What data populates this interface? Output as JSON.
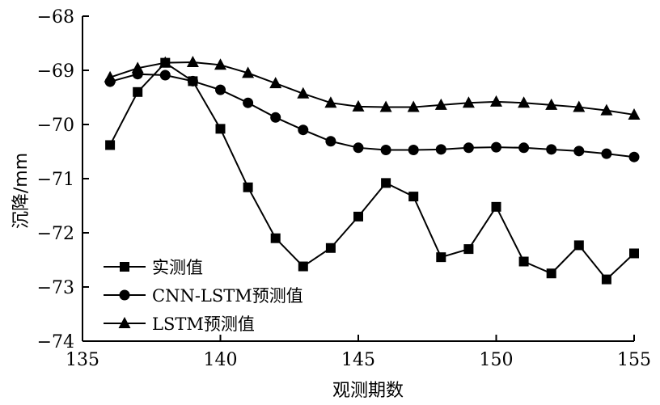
{
  "chart_data": {
    "type": "line",
    "xlabel": "观测期数",
    "ylabel": "沉降/mm",
    "xlim": [
      135,
      155
    ],
    "ylim": [
      -74,
      -68
    ],
    "x_ticks": [
      135,
      140,
      145,
      150,
      155
    ],
    "y_ticks": [
      -68,
      -69,
      -70,
      -71,
      -72,
      -73,
      -74
    ],
    "x_tick_labels": [
      "135",
      "140",
      "145",
      "150",
      "155"
    ],
    "y_tick_labels": [
      "−68",
      "−69",
      "−70",
      "−71",
      "−72",
      "−73",
      "−74"
    ],
    "grid": false,
    "legend_position": "bottom-left",
    "series": [
      {
        "name": "实测值",
        "marker": "square",
        "color": "#000000",
        "x": [
          136,
          137,
          138,
          139,
          140,
          141,
          142,
          143,
          144,
          145,
          146,
          147,
          148,
          149,
          150,
          151,
          152,
          153,
          154,
          155
        ],
        "y": [
          -70.38,
          -69.4,
          -68.86,
          -69.2,
          -70.08,
          -71.16,
          -72.1,
          -72.62,
          -72.28,
          -71.7,
          -71.08,
          -71.33,
          -72.45,
          -72.3,
          -71.52,
          -72.53,
          -72.75,
          -72.23,
          -72.86,
          -72.38
        ]
      },
      {
        "name": "CNN-LSTM预测值",
        "marker": "circle",
        "color": "#000000",
        "x": [
          136,
          137,
          138,
          139,
          140,
          141,
          142,
          143,
          144,
          145,
          146,
          147,
          148,
          149,
          150,
          151,
          152,
          153,
          154,
          155
        ],
        "y": [
          -69.21,
          -69.07,
          -69.09,
          -69.2,
          -69.36,
          -69.6,
          -69.87,
          -70.1,
          -70.31,
          -70.43,
          -70.47,
          -70.47,
          -70.46,
          -70.43,
          -70.42,
          -70.43,
          -70.46,
          -70.49,
          -70.54,
          -70.6
        ]
      },
      {
        "name": "LSTM预测值",
        "marker": "triangle",
        "color": "#000000",
        "x": [
          136,
          137,
          138,
          139,
          140,
          141,
          142,
          143,
          144,
          145,
          146,
          147,
          148,
          149,
          150,
          151,
          152,
          153,
          154,
          155
        ],
        "y": [
          -69.13,
          -68.96,
          -68.86,
          -68.85,
          -68.9,
          -69.05,
          -69.24,
          -69.43,
          -69.6,
          -69.67,
          -69.68,
          -69.68,
          -69.64,
          -69.6,
          -69.58,
          -69.6,
          -69.64,
          -69.68,
          -69.74,
          -69.82
        ]
      }
    ]
  }
}
